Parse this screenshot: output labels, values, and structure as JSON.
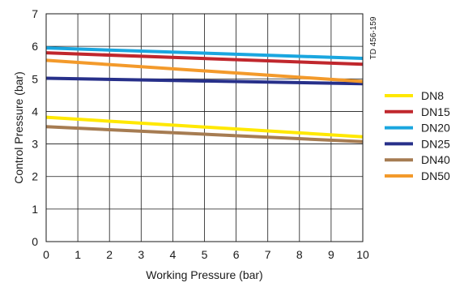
{
  "chart_data": {
    "type": "line",
    "xlabel": "Working Pressure (bar)",
    "ylabel": "Control Pressure (bar)",
    "xlim": [
      0,
      10
    ],
    "ylim": [
      0,
      7
    ],
    "x_ticks": [
      0,
      1,
      2,
      3,
      4,
      5,
      6,
      7,
      8,
      9,
      10
    ],
    "y_ticks": [
      0,
      1,
      2,
      3,
      4,
      5,
      6,
      7
    ],
    "grid": true,
    "legend_position": "right",
    "annotation": "TD 456-159",
    "series": [
      {
        "name": "DN8",
        "color": "#ffe800",
        "x": [
          0,
          10
        ],
        "y": [
          3.82,
          3.22
        ]
      },
      {
        "name": "DN15",
        "color": "#c0272d",
        "x": [
          0,
          10
        ],
        "y": [
          5.8,
          5.45
        ]
      },
      {
        "name": "DN20",
        "color": "#1aa6df",
        "x": [
          0,
          10
        ],
        "y": [
          5.95,
          5.63
        ]
      },
      {
        "name": "DN25",
        "color": "#27308a",
        "x": [
          0,
          10
        ],
        "y": [
          5.02,
          4.85
        ]
      },
      {
        "name": "DN40",
        "color": "#a67c52",
        "x": [
          0,
          10
        ],
        "y": [
          3.53,
          3.07
        ]
      },
      {
        "name": "DN50",
        "color": "#f39a2b",
        "x": [
          0,
          10
        ],
        "y": [
          5.57,
          4.92
        ]
      }
    ]
  }
}
